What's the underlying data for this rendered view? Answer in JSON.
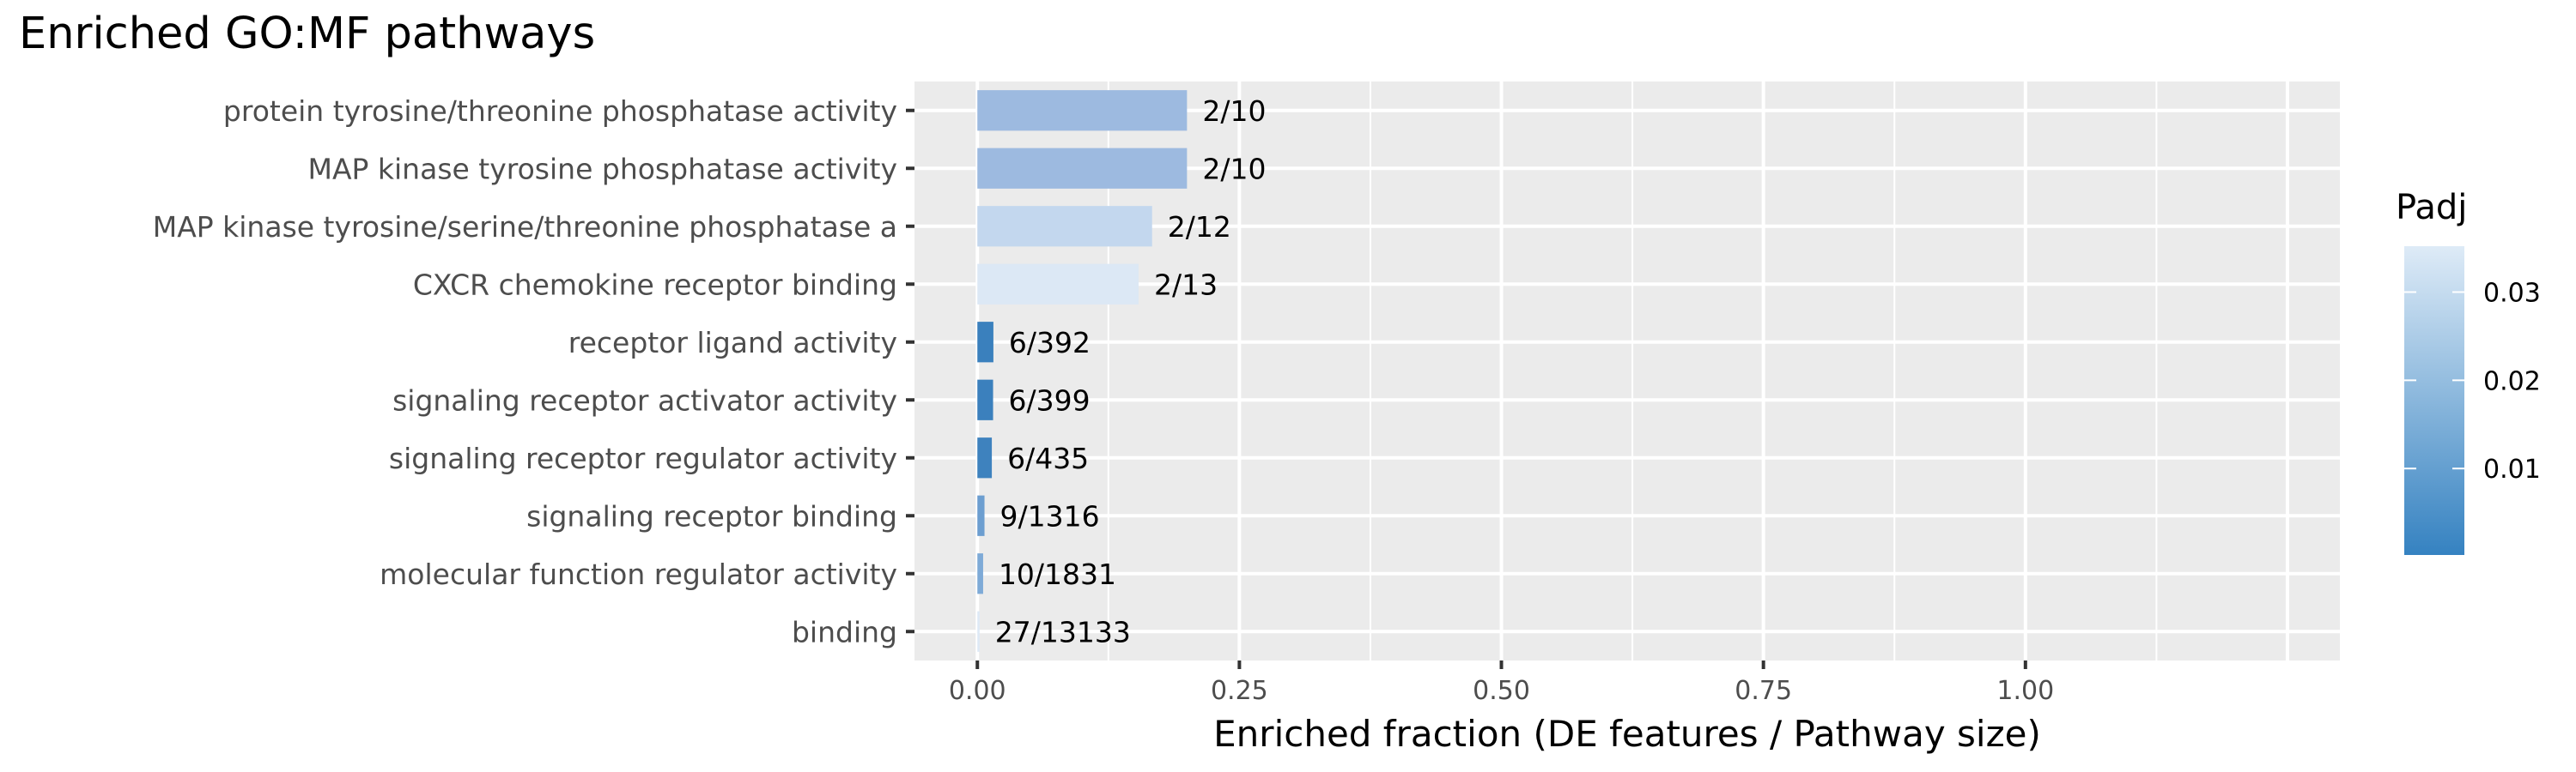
{
  "title": "Enriched GO:MF pathways",
  "chart_data": {
    "type": "bar",
    "orientation": "horizontal",
    "title": "Enriched GO:MF pathways",
    "xlabel": "Enriched fraction (DE features / Pathway size)",
    "ylabel": "",
    "xlim": [
      -0.06,
      1.3
    ],
    "x_ticks": [
      0.0,
      0.25,
      0.5,
      0.75,
      1.0
    ],
    "x_tick_labels": [
      "0.00",
      "0.25",
      "0.50",
      "0.75",
      "1.00"
    ],
    "grid": true,
    "categories": [
      "protein tyrosine/threonine phosphatase activity",
      "MAP kinase tyrosine phosphatase activity",
      "MAP kinase tyrosine/serine/threonine phosphatase a",
      "CXCR chemokine receptor binding",
      "receptor ligand activity",
      "signaling receptor activator activity",
      "signaling receptor regulator activity",
      "signaling receptor binding",
      "molecular function regulator activity",
      "binding"
    ],
    "values": [
      0.2,
      0.2,
      0.1667,
      0.1538,
      0.0153,
      0.015,
      0.0138,
      0.0068,
      0.0055,
      0.0021
    ],
    "labels": [
      "2/10",
      "2/10",
      "2/12",
      "2/13",
      "6/392",
      "6/399",
      "6/435",
      "9/1316",
      "10/1831",
      "27/13133"
    ],
    "padj": [
      0.019,
      0.019,
      0.026,
      0.034,
      0.0005,
      0.0005,
      0.0007,
      0.011,
      0.015,
      0.034
    ],
    "colors": [
      "#9dbae0",
      "#9dbae0",
      "#c3d7ee",
      "#dce8f5",
      "#3a80bd",
      "#3b80bd",
      "#3e82be",
      "#6c9ed0",
      "#7eaad7",
      "#dde9f6"
    ],
    "legend": {
      "title": "Padj",
      "placement": "right",
      "ticks": [
        0.03,
        0.02,
        0.01
      ],
      "tick_labels": [
        "0.03",
        "0.02",
        "0.01"
      ],
      "range": [
        0.0002,
        0.0352
      ],
      "color_low": "#3582c1",
      "color_high": "#deebf7"
    }
  }
}
